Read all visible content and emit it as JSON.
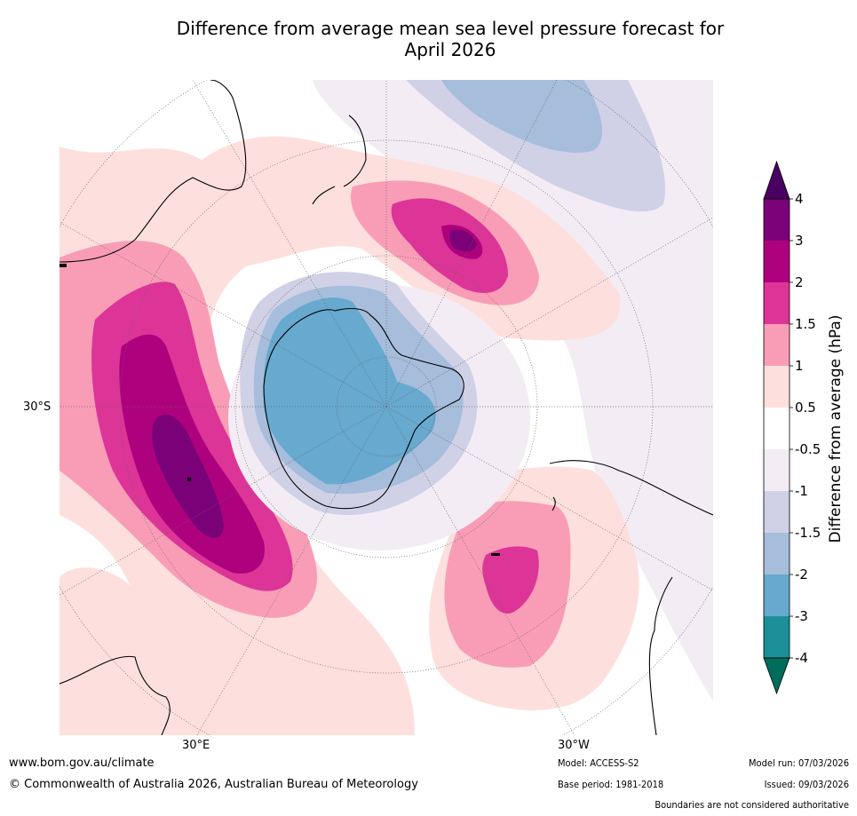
{
  "title_line1": "Difference from average mean sea level pressure forecast for",
  "title_line2": "April 2026",
  "map": {
    "labels": {
      "lat_30s": "30°S",
      "lon_30e": "30°E",
      "lon_30w": "30°W"
    }
  },
  "colorbar": {
    "title": "Difference from average (hPa)",
    "tick_labels": [
      "4",
      "3",
      "2",
      "1.5",
      "1",
      "0.5",
      "-0.5",
      "-1",
      "-1.5",
      "-2",
      "-3",
      "-4"
    ],
    "colors": {
      "gt_4": "#4a0062",
      "3_to_4": "#7a0177",
      "2_to_3": "#ae017e",
      "1.5_to_2": "#dd3497",
      "1_to_1.5": "#f99db7",
      "0.5_to_1": "#fde0dd",
      "-0.5_to_0.5": "#ffffff",
      "-1_to_-0.5": "#f3ecf5",
      "-1.5_to_-1": "#d0d1e6",
      "-2_to_-1.5": "#a6bddb",
      "-3_to_-2": "#67a9cf",
      "-4_to_-3": "#1c9099",
      "lt_-4": "#016c59"
    }
  },
  "footer": {
    "url": "www.bom.gov.au/climate",
    "copyright": "© Commonwealth of Australia 2026, Australian Bureau of Meteorology",
    "model": "Model: ACCESS-S2",
    "base_period": "Base period: 1981-2018",
    "model_run": "Model run: 07/03/2026",
    "issued": "Issued: 09/03/2026",
    "disclaimer": "Boundaries are not considered authoritative"
  }
}
